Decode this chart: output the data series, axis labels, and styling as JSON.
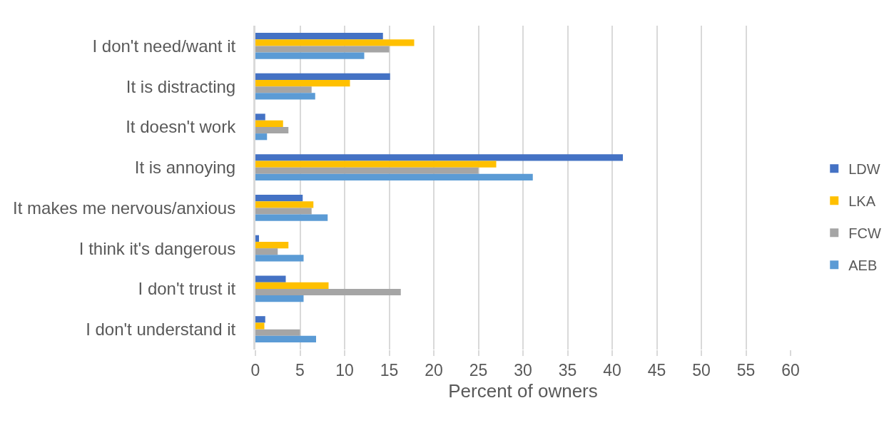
{
  "chart_data": {
    "type": "bar",
    "orientation": "horizontal",
    "categories": [
      "I don't need/want it",
      "It is distracting",
      "It doesn't work",
      "It is annoying",
      "It makes me nervous/anxious",
      "I think it's dangerous",
      "I don't trust it",
      "I don't understand it"
    ],
    "series": [
      {
        "name": "LDW",
        "color": "#4472c4",
        "values": [
          14.3,
          15.1,
          1.1,
          41.2,
          5.3,
          0.4,
          3.4,
          1.1
        ]
      },
      {
        "name": "LKA",
        "color": "#ffc000",
        "values": [
          17.8,
          10.6,
          3.1,
          27.0,
          6.5,
          3.7,
          8.2,
          1.0
        ]
      },
      {
        "name": "FCW",
        "color": "#a5a5a5",
        "values": [
          15.0,
          6.3,
          3.7,
          25.0,
          6.3,
          2.5,
          16.3,
          5.0
        ]
      },
      {
        "name": "AEB",
        "color": "#5b9bd5",
        "values": [
          12.2,
          6.7,
          1.3,
          31.1,
          8.1,
          5.4,
          5.4,
          6.8
        ]
      }
    ],
    "xlabel": "Percent of owners",
    "xlim": [
      0,
      60
    ],
    "xticks": [
      0,
      5,
      10,
      15,
      20,
      25,
      30,
      35,
      40,
      45,
      50,
      55,
      60
    ],
    "grid": "x",
    "legend": "right"
  }
}
